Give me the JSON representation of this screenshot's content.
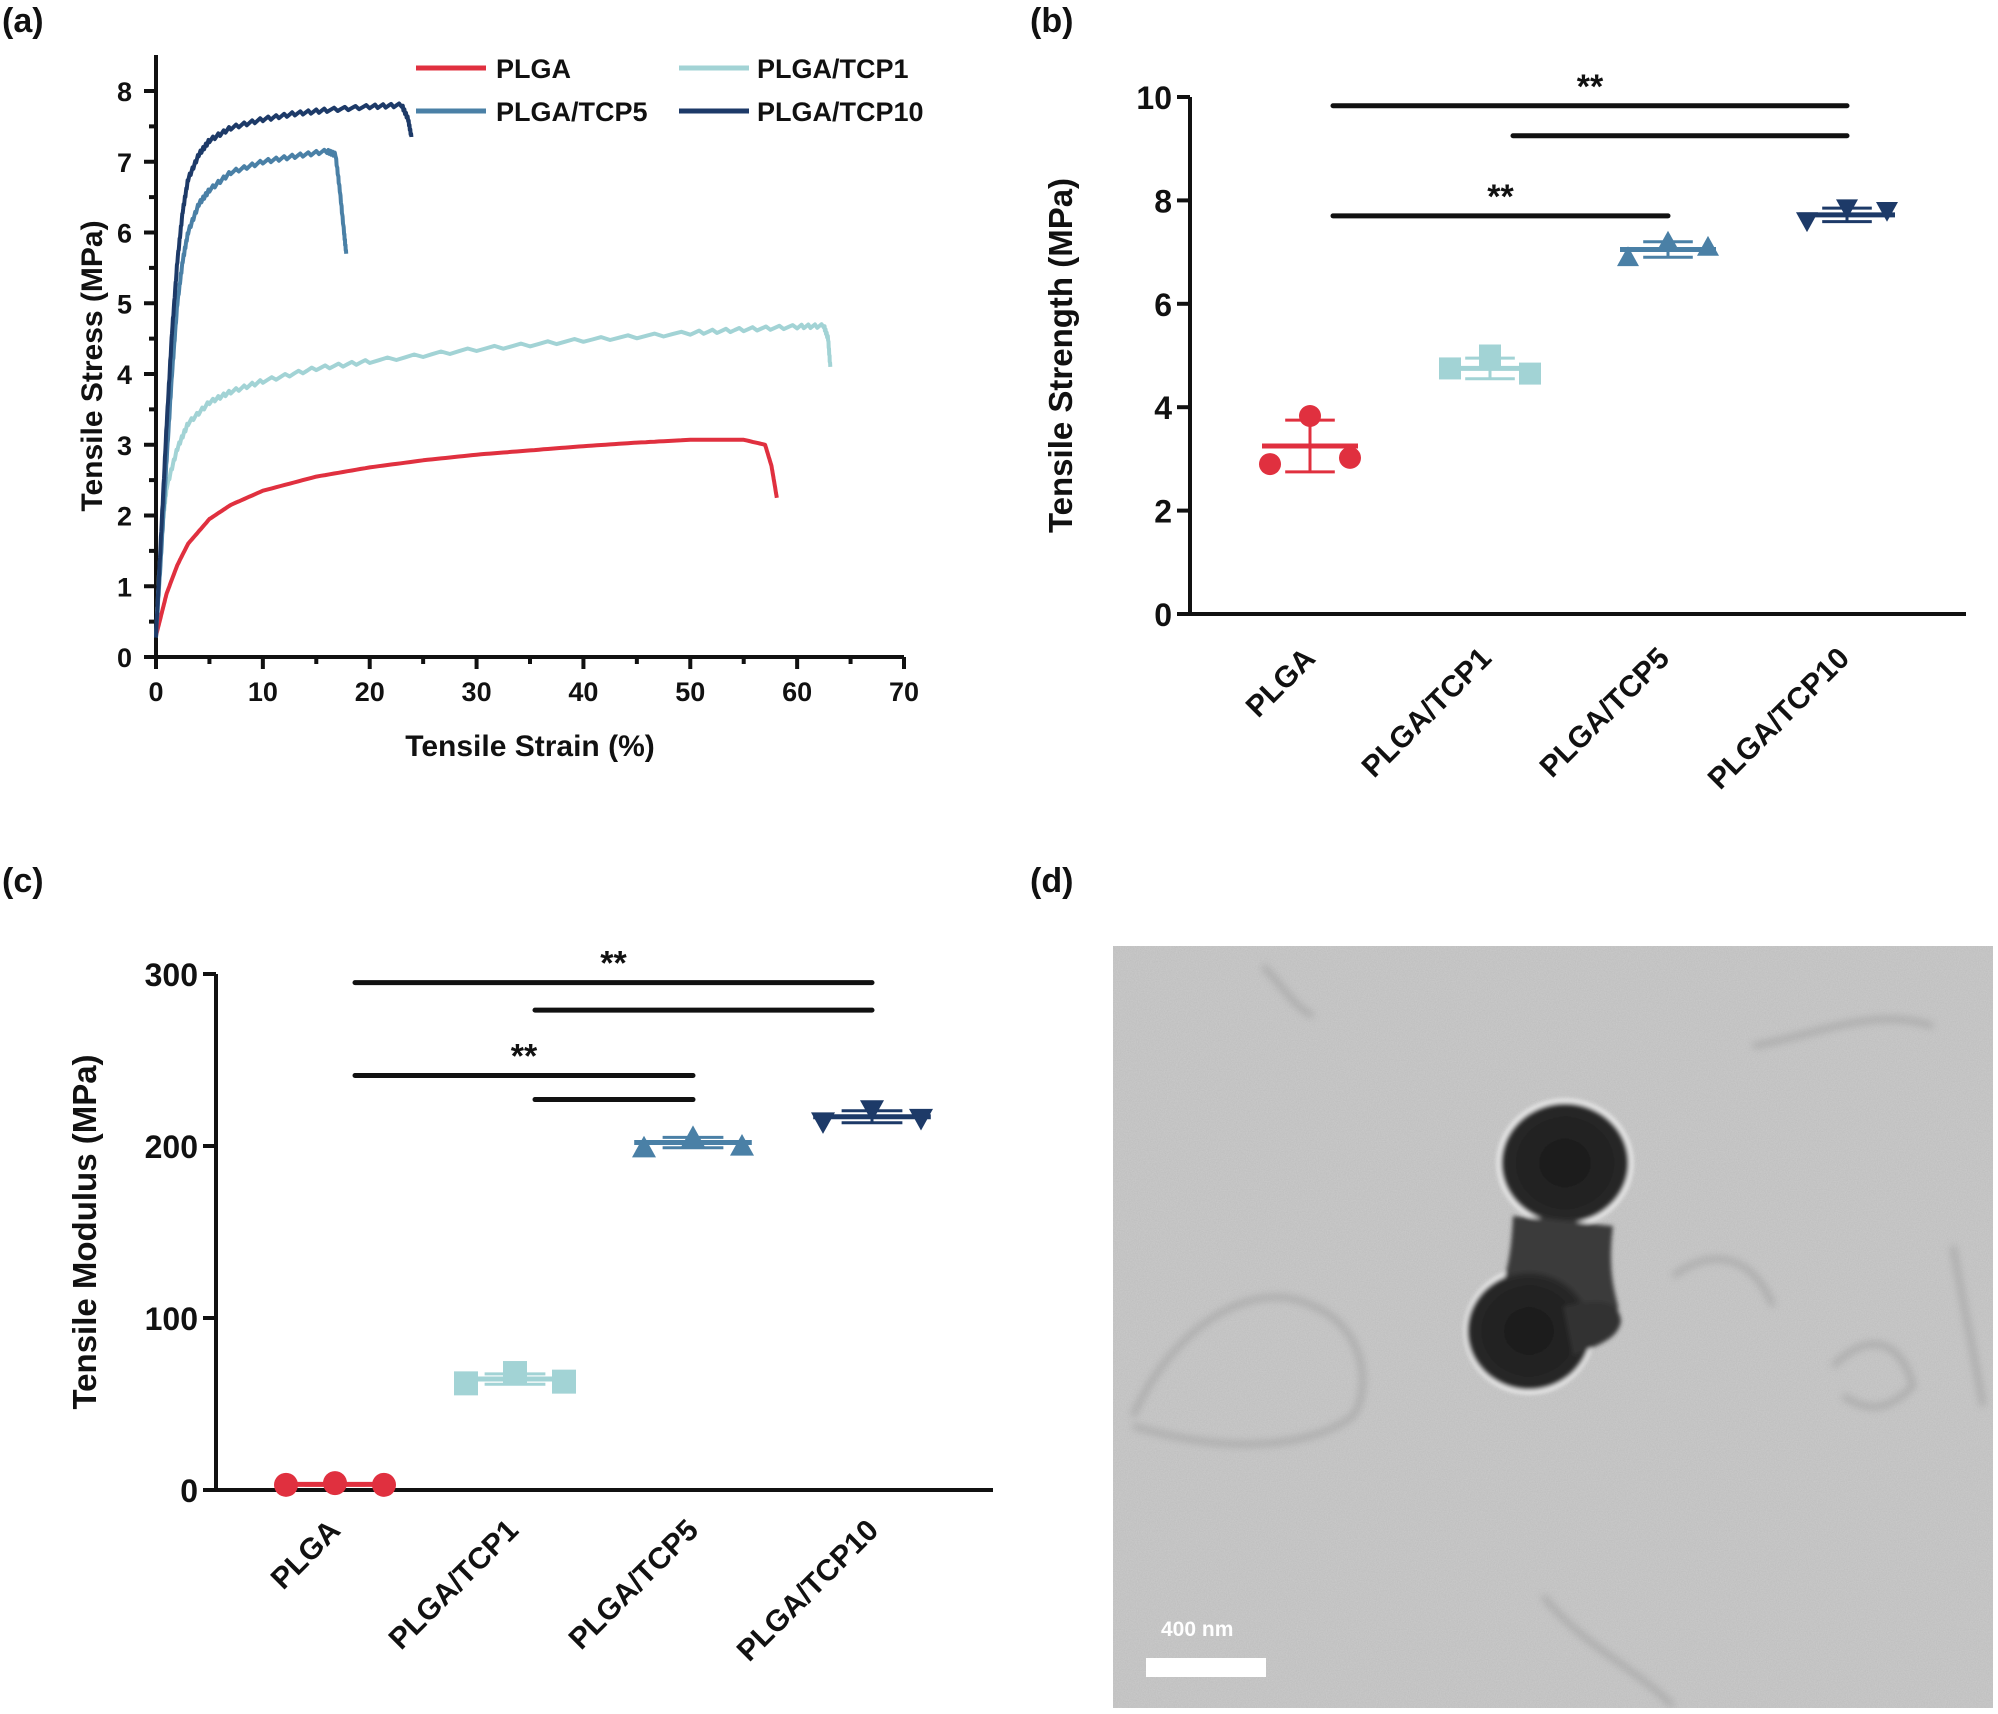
{
  "panels": {
    "a": {
      "label": "(a)"
    },
    "b": {
      "label": "(b)"
    },
    "c": {
      "label": "(c)"
    },
    "d": {
      "label": "(d)",
      "scale_bar": "400 nm"
    }
  },
  "colors": {
    "PLGA": "#e0303f",
    "PLGA/TCP1": "#a2d3d5",
    "PLGA/TCP5": "#4a80a6",
    "PLGA/TCP10": "#1d3a68"
  },
  "chart_data": [
    {
      "panel": "a",
      "type": "line",
      "title": "",
      "xlabel": "Tensile Strain (%)",
      "ylabel": "Tensile Stress (MPa)",
      "xlim": [
        0,
        70
      ],
      "ylim": [
        0,
        8.5
      ],
      "xticks": [
        0,
        10,
        20,
        30,
        40,
        50,
        60,
        70
      ],
      "yticks": [
        0,
        1,
        2,
        3,
        4,
        5,
        6,
        7,
        8
      ],
      "grid": false,
      "legend_position": "top-right (2 columns)",
      "legend": [
        "PLGA",
        "PLGA/TCP1",
        "PLGA/TCP5",
        "PLGA/TCP10"
      ],
      "series": [
        {
          "name": "PLGA",
          "x": [
            0,
            0.5,
            1,
            2,
            3,
            5,
            7,
            10,
            15,
            20,
            25,
            30,
            35,
            40,
            45,
            50,
            55,
            57,
            57.6,
            58.1
          ],
          "y": [
            0.3,
            0.6,
            0.9,
            1.3,
            1.6,
            1.95,
            2.15,
            2.35,
            2.55,
            2.68,
            2.78,
            2.86,
            2.92,
            2.98,
            3.03,
            3.07,
            3.07,
            3.0,
            2.7,
            2.25
          ]
        },
        {
          "name": "PLGA/TCP1",
          "x": [
            0,
            0.3,
            0.7,
            1,
            2,
            3,
            5,
            7,
            10,
            15,
            20,
            30,
            40,
            50,
            55,
            60,
            62.5,
            62.9,
            63.1
          ],
          "y": [
            0.3,
            1.2,
            2.0,
            2.4,
            2.95,
            3.3,
            3.6,
            3.75,
            3.9,
            4.08,
            4.18,
            4.35,
            4.48,
            4.58,
            4.63,
            4.67,
            4.68,
            4.5,
            4.1
          ]
        },
        {
          "name": "PLGA/TCP5",
          "x": [
            0,
            0.5,
            1,
            1.5,
            2,
            2.5,
            3,
            4,
            5,
            7,
            10,
            13,
            16,
            16.8,
            17.2,
            17.6,
            17.8
          ],
          "y": [
            0.3,
            1.5,
            2.8,
            4.0,
            5.0,
            5.6,
            6.0,
            6.4,
            6.6,
            6.85,
            7.0,
            7.08,
            7.15,
            7.1,
            6.6,
            6.0,
            5.7
          ]
        },
        {
          "name": "PLGA/TCP10",
          "x": [
            0,
            0.5,
            1,
            1.5,
            2,
            2.5,
            3,
            4,
            5,
            7,
            10,
            13,
            16,
            20,
            23,
            23.6,
            23.9
          ],
          "y": [
            0.3,
            1.8,
            3.3,
            4.6,
            5.6,
            6.3,
            6.75,
            7.1,
            7.3,
            7.48,
            7.6,
            7.68,
            7.73,
            7.78,
            7.8,
            7.6,
            7.35
          ]
        }
      ]
    },
    {
      "panel": "b",
      "type": "scatter",
      "title": "",
      "xlabel": "",
      "ylabel": "Tensile Strength (MPa)",
      "ylim": [
        0,
        10
      ],
      "yticks": [
        0,
        2,
        4,
        6,
        8,
        10
      ],
      "categories": [
        "PLGA",
        "PLGA/TCP1",
        "PLGA/TCP5",
        "PLGA/TCP10"
      ],
      "markers": [
        "circle",
        "square",
        "triangle-up",
        "triangle-down"
      ],
      "series": [
        {
          "name": "PLGA",
          "points": [
            2.9,
            3.83,
            3.02
          ],
          "mean": 3.25,
          "sd": 0.5
        },
        {
          "name": "PLGA/TCP1",
          "points": [
            4.75,
            5.0,
            4.65
          ],
          "mean": 4.75,
          "sd": 0.2
        },
        {
          "name": "PLGA/TCP5",
          "points": [
            6.9,
            7.2,
            7.1
          ],
          "mean": 7.05,
          "sd": 0.15
        },
        {
          "name": "PLGA/TCP10",
          "points": [
            7.6,
            7.85,
            7.8
          ],
          "mean": 7.72,
          "sd": 0.13
        }
      ],
      "significance": [
        {
          "from": "PLGA",
          "to": "PLGA/TCP10",
          "label": "**",
          "y": 9.83
        },
        {
          "from": "PLGA/TCP1",
          "to": "PLGA/TCP10",
          "label": "",
          "y": 9.25
        },
        {
          "from": "PLGA",
          "to": "PLGA/TCP5",
          "label": "**",
          "y": 7.7
        }
      ]
    },
    {
      "panel": "c",
      "type": "scatter",
      "title": "",
      "xlabel": "",
      "ylabel": "Tensile Modulus (MPa)",
      "ylim": [
        0,
        300
      ],
      "yticks": [
        0,
        100,
        200,
        300
      ],
      "categories": [
        "PLGA",
        "PLGA/TCP1",
        "PLGA/TCP5",
        "PLGA/TCP10"
      ],
      "markers": [
        "circle",
        "square",
        "triangle-up",
        "triangle-down"
      ],
      "series": [
        {
          "name": "PLGA",
          "points": [
            3,
            4,
            3
          ],
          "mean": 3.3,
          "sd": 0.5
        },
        {
          "name": "PLGA/TCP1",
          "points": [
            62,
            68,
            63
          ],
          "mean": 64.5,
          "sd": 3
        },
        {
          "name": "PLGA/TCP5",
          "points": [
            199,
            205,
            200
          ],
          "mean": 202,
          "sd": 3
        },
        {
          "name": "PLGA/TCP10",
          "points": [
            214,
            221,
            216
          ],
          "mean": 217,
          "sd": 3.5
        }
      ],
      "significance": [
        {
          "from": "PLGA",
          "to": "PLGA/TCP10",
          "label": "**",
          "y": 295
        },
        {
          "from": "PLGA/TCP1",
          "to": "PLGA/TCP10",
          "label": "",
          "y": 279
        },
        {
          "from": "PLGA",
          "to": "PLGA/TCP5",
          "label": "**",
          "y": 241
        },
        {
          "from": "PLGA/TCP1",
          "to": "PLGA/TCP5",
          "label": "",
          "y": 227
        }
      ]
    }
  ]
}
